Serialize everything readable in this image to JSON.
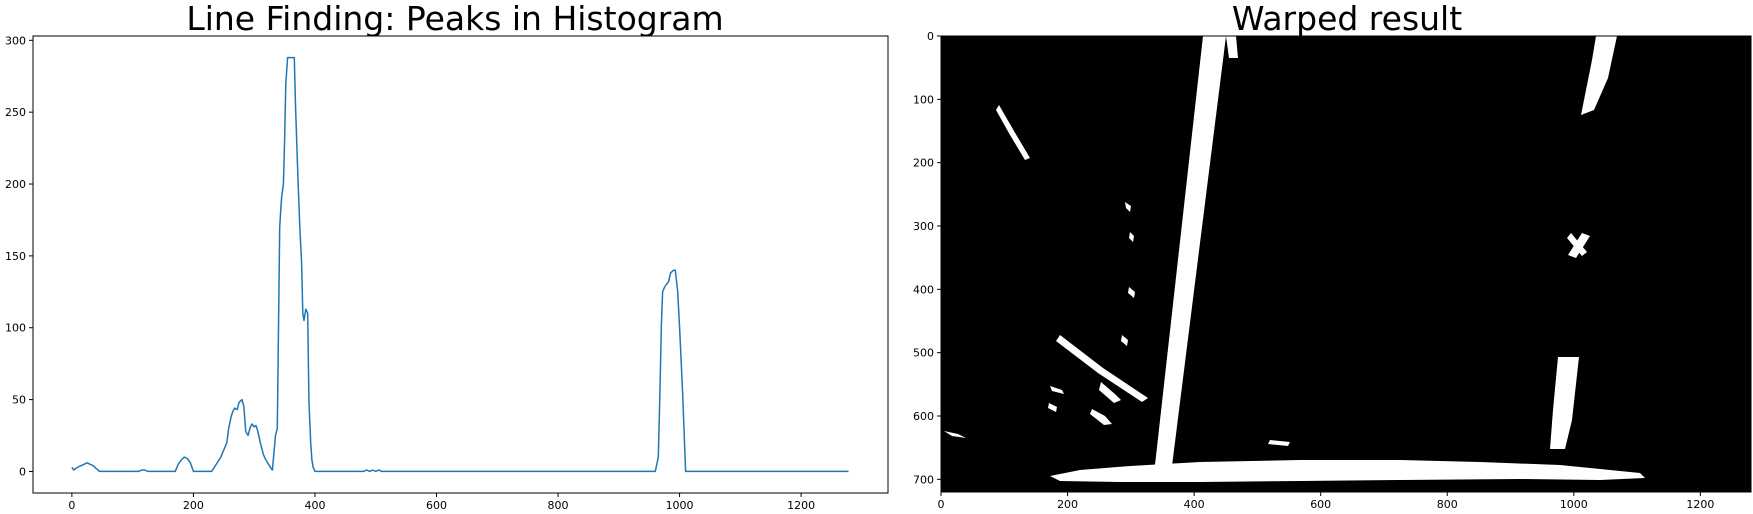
{
  "chart_data": [
    {
      "type": "line",
      "title": "Line Finding: Peaks in Histogram",
      "xlabel": "",
      "ylabel": "",
      "xlim": [
        -64,
        1343
      ],
      "ylim": [
        -15,
        303
      ],
      "grid": false,
      "line_color": "#1f77b4",
      "x_ticks": [
        0,
        200,
        400,
        600,
        800,
        1000,
        1200
      ],
      "y_ticks": [
        0,
        50,
        100,
        150,
        200,
        250,
        300
      ],
      "series": [
        {
          "x": [
            0,
            3,
            6,
            10,
            15,
            20,
            25,
            30,
            35,
            40,
            43,
            45,
            60,
            80,
            100,
            110,
            115,
            120,
            125,
            170,
            175,
            180,
            185,
            190,
            195,
            200,
            230,
            245,
            255,
            258,
            262,
            265,
            268,
            272,
            275,
            280,
            283,
            286,
            290,
            293,
            296,
            300,
            303,
            306,
            310,
            315,
            318,
            322,
            325,
            328,
            330,
            335,
            338,
            342,
            345,
            348,
            350,
            352,
            355,
            358,
            362,
            366,
            368,
            372,
            375,
            378,
            380,
            382,
            385,
            388,
            390,
            393,
            395,
            397,
            400,
            402,
            405,
            480,
            485,
            490,
            495,
            500,
            505,
            510,
            960,
            965,
            968,
            970,
            972,
            975,
            978,
            982,
            985,
            990,
            993,
            997,
            1000,
            1005,
            1010,
            1015,
            1020,
            1278
          ],
          "y": [
            3,
            1,
            2,
            3,
            4,
            5,
            6,
            5,
            4,
            2,
            1,
            0,
            0,
            0,
            0,
            0,
            1,
            1,
            0,
            0,
            5,
            8,
            10,
            9,
            6,
            0,
            0,
            10,
            20,
            30,
            38,
            42,
            44,
            43,
            48,
            50,
            45,
            28,
            25,
            30,
            33,
            31,
            32,
            28,
            20,
            12,
            9,
            6,
            4,
            2,
            1,
            25,
            30,
            170,
            190,
            200,
            230,
            270,
            288,
            288,
            288,
            288,
            255,
            205,
            170,
            145,
            110,
            105,
            113,
            110,
            50,
            20,
            8,
            3,
            0,
            0,
            0,
            0,
            1,
            0,
            1,
            0,
            1,
            0,
            0,
            10,
            60,
            100,
            125,
            128,
            130,
            132,
            138,
            140,
            140,
            125,
            100,
            55,
            0,
            0,
            0,
            0
          ]
        }
      ]
    },
    {
      "type": "image",
      "title": "Warped result",
      "xlabel": "",
      "ylabel": "",
      "xlim": [
        0,
        1280
      ],
      "ylim": [
        720,
        0
      ],
      "grid": false,
      "x_ticks": [
        0,
        200,
        400,
        600,
        800,
        1000,
        1200
      ],
      "y_ticks": [
        0,
        100,
        200,
        300,
        400,
        500,
        600,
        700
      ],
      "background": "#000000",
      "foreground": "#ffffff"
    }
  ]
}
